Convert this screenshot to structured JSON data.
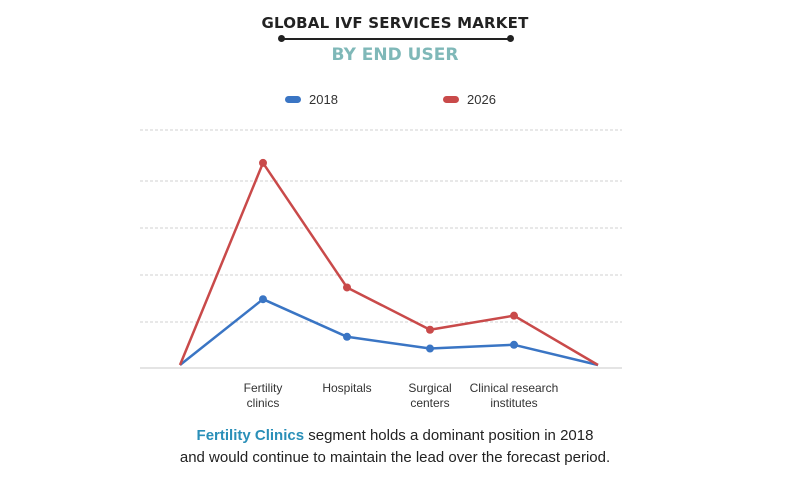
{
  "header": {
    "title": "GLOBAL IVF SERVICES MARKET",
    "subtitle": "BY END USER"
  },
  "caption": {
    "highlight": "Fertility Clinics",
    "line1_rest": " segment holds a dominant position in 2018",
    "line2": "and would continue to maintain the lead over the forecast period."
  },
  "colors": {
    "series_2018": "#3a75c4",
    "series_2026": "#c94a4a",
    "subtitle": "#7fb8b8",
    "highlight": "#2a8fb8"
  },
  "chart_data": {
    "type": "line",
    "categories": [
      "",
      "Fertility\nclinics",
      "Hospitals",
      "Surgical\ncenters",
      "Clinical research\ninstitutes",
      ""
    ],
    "series": [
      {
        "name": "2018",
        "values": [
          0,
          1.4,
          0.6,
          0.35,
          0.43,
          0
        ]
      },
      {
        "name": "2026",
        "values": [
          0,
          4.3,
          1.65,
          0.75,
          1.05,
          0
        ]
      }
    ],
    "ylim": [
      0,
      5
    ],
    "grid": true,
    "legend": "top-center"
  }
}
